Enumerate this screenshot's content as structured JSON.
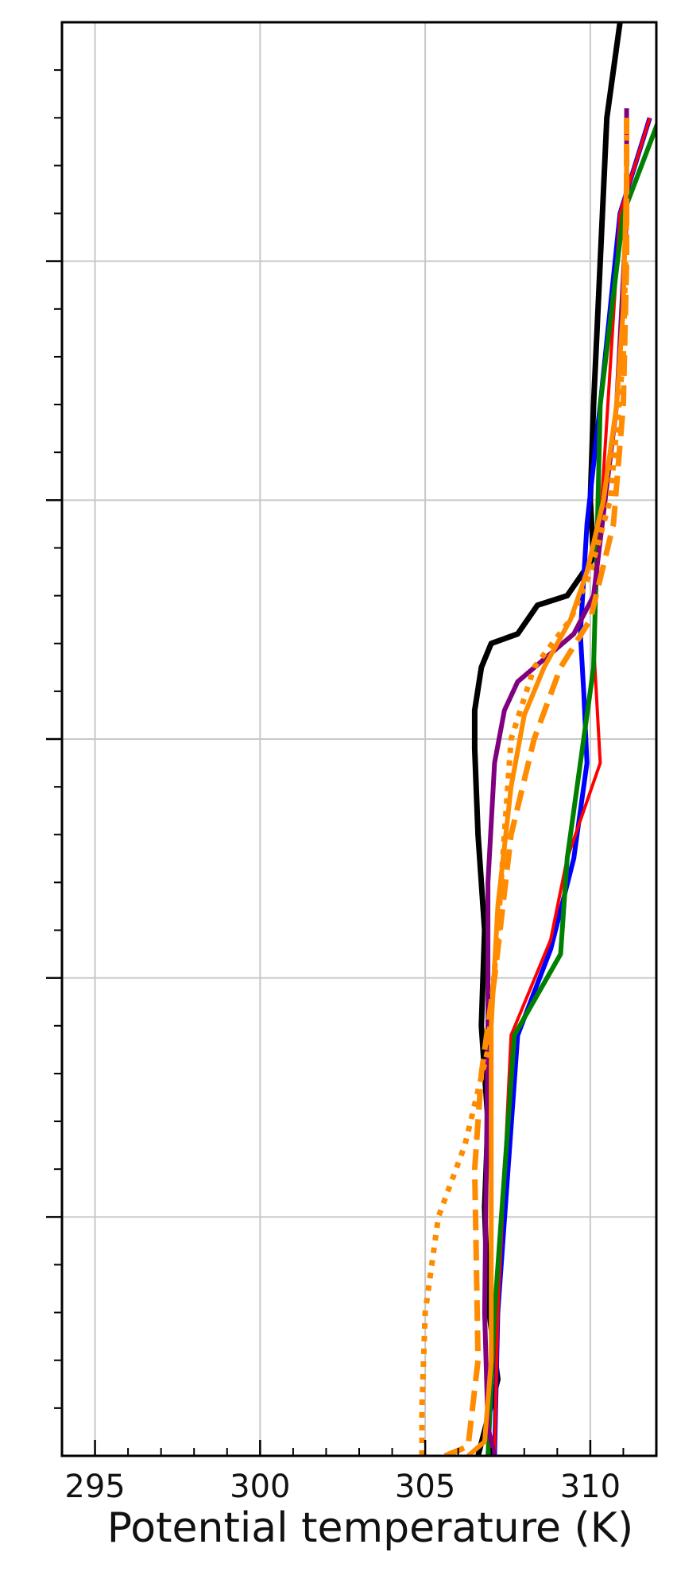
{
  "chart_data": {
    "type": "line",
    "title": "",
    "xlabel": "Potential temperature (K)",
    "ylabel": "",
    "xlim": [
      294,
      312
    ],
    "ylim": [
      0,
      3000
    ],
    "x_ticks": [
      295,
      300,
      305,
      310
    ],
    "x_tick_labels": [
      "295",
      "300",
      "305",
      "310"
    ],
    "y_major_ticks": [
      500,
      1000,
      1500,
      2000,
      2500
    ],
    "grid": true,
    "legend": "none",
    "series": [
      {
        "color": "#000000",
        "style": "solid",
        "width": 7,
        "points": [
          [
            306.6,
            0
          ],
          [
            306.9,
            80
          ],
          [
            307.2,
            160
          ],
          [
            306.9,
            320
          ],
          [
            306.8,
            520
          ],
          [
            306.9,
            700
          ],
          [
            306.7,
            900
          ],
          [
            306.8,
            1100
          ],
          [
            306.6,
            1300
          ],
          [
            306.5,
            1480
          ],
          [
            306.5,
            1560
          ],
          [
            306.7,
            1650
          ],
          [
            307.0,
            1700
          ],
          [
            307.8,
            1720
          ],
          [
            308.4,
            1780
          ],
          [
            309.3,
            1800
          ],
          [
            309.8,
            1850
          ],
          [
            310.1,
            1880
          ],
          [
            310.0,
            2000
          ],
          [
            310.1,
            2200
          ],
          [
            310.3,
            2500
          ],
          [
            310.5,
            2800
          ],
          [
            310.9,
            3000
          ]
        ]
      },
      {
        "color": "#0000ff",
        "style": "solid",
        "width": 6,
        "points": [
          [
            307.1,
            0
          ],
          [
            307.2,
            300
          ],
          [
            307.8,
            880
          ],
          [
            308.8,
            1060
          ],
          [
            309.5,
            1250
          ],
          [
            309.9,
            1450
          ],
          [
            309.8,
            1600
          ],
          [
            309.7,
            1720
          ],
          [
            309.9,
            1950
          ],
          [
            310.3,
            2200
          ],
          [
            310.9,
            2600
          ],
          [
            311.8,
            2800
          ]
        ]
      },
      {
        "color": "#ff0000",
        "style": "solid",
        "width": 4,
        "points": [
          [
            307.1,
            0
          ],
          [
            307.2,
            300
          ],
          [
            307.6,
            880
          ],
          [
            308.8,
            1080
          ],
          [
            309.3,
            1250
          ],
          [
            310.3,
            1450
          ],
          [
            310.1,
            1700
          ],
          [
            310.3,
            1950
          ],
          [
            310.9,
            2600
          ],
          [
            311.8,
            2800
          ]
        ]
      },
      {
        "color": "#008000",
        "style": "solid",
        "width": 6,
        "points": [
          [
            306.9,
            0
          ],
          [
            307.1,
            300
          ],
          [
            307.7,
            880
          ],
          [
            309.1,
            1050
          ],
          [
            309.3,
            1250
          ],
          [
            310.1,
            1650
          ],
          [
            310.2,
            1900
          ],
          [
            310.3,
            2200
          ],
          [
            311.0,
            2600
          ],
          [
            312.1,
            2800
          ]
        ]
      },
      {
        "color": "#800080",
        "style": "solid",
        "width": 6,
        "points": [
          [
            307.1,
            0
          ],
          [
            306.9,
            60
          ],
          [
            306.8,
            300
          ],
          [
            306.9,
            900
          ],
          [
            306.9,
            1200
          ],
          [
            307.1,
            1450
          ],
          [
            307.4,
            1560
          ],
          [
            307.8,
            1620
          ],
          [
            309.5,
            1720
          ],
          [
            310.1,
            1800
          ],
          [
            310.8,
            2200
          ],
          [
            311.1,
            2600
          ],
          [
            311.1,
            2820
          ]
        ]
      },
      {
        "color": "#ff8c00",
        "style": "solid",
        "width": 6,
        "points": [
          [
            306.3,
            0
          ],
          [
            306.8,
            30
          ],
          [
            307.0,
            200
          ],
          [
            307.0,
            600
          ],
          [
            307.0,
            900
          ],
          [
            307.2,
            1150
          ],
          [
            307.6,
            1400
          ],
          [
            308.0,
            1550
          ],
          [
            308.6,
            1650
          ],
          [
            309.4,
            1750
          ],
          [
            309.9,
            1850
          ],
          [
            310.4,
            2000
          ],
          [
            310.8,
            2200
          ],
          [
            311.0,
            2400
          ],
          [
            311.1,
            2700
          ]
        ]
      },
      {
        "color": "#ff8c00",
        "style": "dashed",
        "width": 7,
        "points": [
          [
            305.6,
            0
          ],
          [
            306.3,
            20
          ],
          [
            306.6,
            200
          ],
          [
            306.5,
            600
          ],
          [
            306.7,
            800
          ],
          [
            307.1,
            1000
          ],
          [
            307.6,
            1300
          ],
          [
            308.3,
            1500
          ],
          [
            309.1,
            1650
          ],
          [
            310.0,
            1750
          ],
          [
            310.7,
            1950
          ],
          [
            311.0,
            2200
          ],
          [
            311.1,
            2500
          ],
          [
            311.1,
            2800
          ]
        ]
      },
      {
        "color": "#ff8c00",
        "style": "dotted",
        "width": 7,
        "points": [
          [
            304.9,
            0
          ],
          [
            304.9,
            100
          ],
          [
            305.0,
            300
          ],
          [
            305.4,
            500
          ],
          [
            306.2,
            650
          ],
          [
            306.9,
            850
          ],
          [
            307.2,
            1100
          ],
          [
            307.4,
            1300
          ],
          [
            307.6,
            1500
          ],
          [
            308.3,
            1650
          ],
          [
            309.4,
            1750
          ],
          [
            310.0,
            1850
          ],
          [
            310.6,
            2000
          ],
          [
            311.0,
            2300
          ],
          [
            311.1,
            2600
          ],
          [
            311.1,
            2800
          ]
        ]
      }
    ]
  }
}
